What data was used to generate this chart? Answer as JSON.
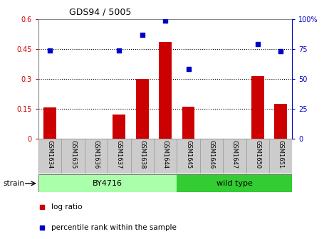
{
  "title": "GDS94 / 5005",
  "samples": [
    "GSM1634",
    "GSM1635",
    "GSM1636",
    "GSM1637",
    "GSM1638",
    "GSM1644",
    "GSM1645",
    "GSM1646",
    "GSM1647",
    "GSM1650",
    "GSM1651"
  ],
  "log_ratio": [
    0.155,
    0.0,
    0.0,
    0.12,
    0.3,
    0.485,
    0.16,
    0.0,
    0.0,
    0.315,
    0.175
  ],
  "percentile_rank": [
    74,
    null,
    null,
    74,
    87,
    99,
    58,
    null,
    null,
    79,
    73
  ],
  "left_ylim": [
    0,
    0.6
  ],
  "right_ylim": [
    0,
    100
  ],
  "left_yticks": [
    0,
    0.15,
    0.3,
    0.45,
    0.6
  ],
  "right_yticks": [
    0,
    25,
    50,
    75,
    100
  ],
  "left_yticklabels": [
    "0",
    "0.15",
    "0.3",
    "0.45",
    "0.6"
  ],
  "right_yticklabels": [
    "0",
    "25",
    "50",
    "75",
    "100%"
  ],
  "bar_color": "#cc0000",
  "scatter_color": "#0000cc",
  "grid_color": "#000000",
  "strain_groups": [
    {
      "label": "BY4716",
      "start": 0,
      "end": 5,
      "color": "#aaffaa"
    },
    {
      "label": "wild type",
      "start": 6,
      "end": 10,
      "color": "#33cc33"
    }
  ],
  "strain_label": "strain",
  "legend_items": [
    {
      "color": "#cc0000",
      "label": "log ratio"
    },
    {
      "color": "#0000cc",
      "label": "percentile rank within the sample"
    }
  ],
  "tick_label_color_left": "#cc0000",
  "tick_label_color_right": "#0000cc",
  "background_color": "#ffffff",
  "label_box_color": "#cccccc",
  "bar_width": 0.55
}
